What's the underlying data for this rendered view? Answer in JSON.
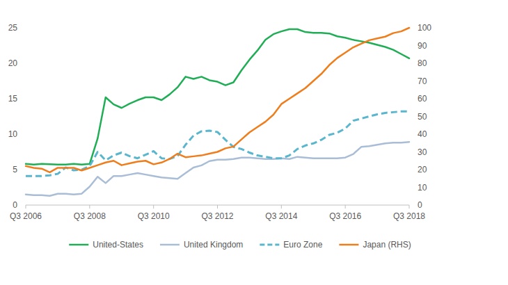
{
  "chart_data": {
    "type": "line",
    "categories": [
      "Q3 2006",
      null,
      null,
      null,
      null,
      null,
      null,
      null,
      "Q3 2008",
      null,
      null,
      null,
      null,
      null,
      null,
      null,
      "Q3 2010",
      null,
      null,
      null,
      null,
      null,
      null,
      null,
      "Q3 2012",
      null,
      null,
      null,
      null,
      null,
      null,
      null,
      "Q3 2014",
      null,
      null,
      null,
      null,
      null,
      null,
      null,
      "Q3 2016",
      null,
      null,
      null,
      null,
      null,
      null,
      null,
      "Q3 2018"
    ],
    "ylim": [
      0,
      25
    ],
    "yticks": [
      0,
      5,
      10,
      15,
      20,
      25
    ],
    "y2lim": [
      0,
      100
    ],
    "y2ticks": [
      0,
      10,
      20,
      30,
      40,
      50,
      60,
      70,
      80,
      90,
      100
    ],
    "grid": false,
    "legend": "bottom",
    "series": [
      {
        "name": "United-States",
        "color": "#1fad55",
        "line_style": "solid",
        "values": [
          5.8,
          5.7,
          5.8,
          5.75,
          5.7,
          5.7,
          5.8,
          5.7,
          5.8,
          9.4,
          15.2,
          14.2,
          13.7,
          14.3,
          14.8,
          15.2,
          15.2,
          14.8,
          15.6,
          16.6,
          18.1,
          17.8,
          18.1,
          17.6,
          17.4,
          16.9,
          17.3,
          19.0,
          20.5,
          21.8,
          23.3,
          24.1,
          24.5,
          24.8,
          24.8,
          24.4,
          24.3,
          24.3,
          24.2,
          23.8,
          23.6,
          23.3,
          23.1,
          22.9,
          22.6,
          22.3,
          21.9,
          21.3,
          20.7
        ]
      },
      {
        "name": "United Kingdom",
        "color": "#a9bdd6",
        "line_style": "solid",
        "values": [
          1.5,
          1.4,
          1.4,
          1.3,
          1.6,
          1.6,
          1.5,
          1.6,
          2.6,
          4.0,
          3.1,
          4.1,
          4.1,
          4.3,
          4.5,
          4.3,
          4.1,
          3.9,
          3.8,
          3.7,
          4.5,
          5.3,
          5.6,
          6.2,
          6.4,
          6.4,
          6.5,
          6.7,
          6.7,
          6.6,
          6.5,
          6.5,
          6.6,
          6.5,
          6.8,
          6.7,
          6.6,
          6.6,
          6.6,
          6.6,
          6.7,
          7.2,
          8.2,
          8.3,
          8.5,
          8.7,
          8.8,
          8.8,
          8.9
        ]
      },
      {
        "name": "Euro Zone",
        "color": "#5ab6cc",
        "line_style": "dashed",
        "values": [
          4.1,
          4.1,
          4.1,
          4.2,
          4.4,
          5.3,
          4.9,
          5.0,
          5.5,
          7.5,
          6.3,
          7.0,
          7.4,
          6.9,
          6.6,
          7.1,
          7.6,
          6.6,
          6.5,
          6.9,
          8.5,
          9.8,
          10.4,
          10.5,
          10.3,
          9.2,
          8.2,
          7.9,
          7.4,
          7.0,
          6.8,
          6.6,
          6.6,
          7.0,
          7.9,
          8.4,
          8.7,
          9.2,
          9.9,
          10.2,
          10.8,
          11.9,
          12.2,
          12.5,
          12.8,
          13.0,
          13.1,
          13.2,
          13.2
        ]
      },
      {
        "name": "Japan (RHS)",
        "color": "#ef7d1c",
        "line_style": "solid",
        "axis": "y2",
        "values": [
          22,
          21,
          20.5,
          18.5,
          21,
          21,
          21,
          19.5,
          21,
          22.5,
          24,
          25,
          22.5,
          23.5,
          24.5,
          25,
          23,
          24,
          26,
          29,
          27,
          27.5,
          28,
          29,
          30,
          32,
          33,
          37,
          41,
          44,
          47,
          51,
          57,
          60,
          63,
          66,
          70,
          74,
          79,
          83,
          86,
          89,
          91,
          93,
          94,
          95,
          97,
          98,
          100
        ]
      }
    ]
  }
}
